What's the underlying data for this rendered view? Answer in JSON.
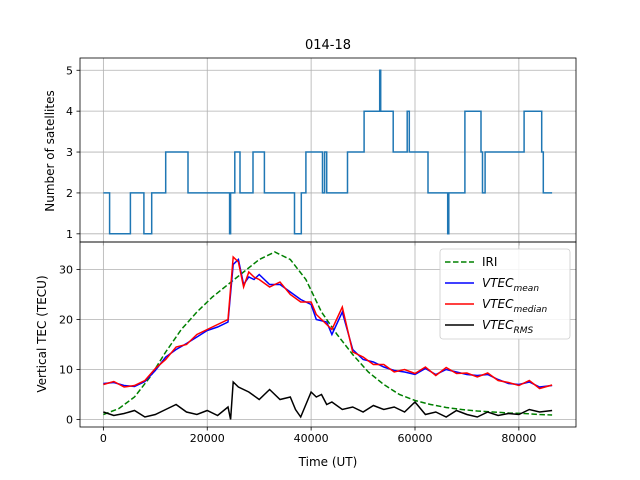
{
  "title": "014-18",
  "chart_data": [
    {
      "type": "line",
      "id": "satellites",
      "ylabel": "Number of satellites",
      "xlabel": "",
      "xlim": [
        -4500,
        91000
      ],
      "ylim": [
        0.8,
        5.3
      ],
      "yticks": [
        1,
        2,
        3,
        4,
        5
      ],
      "xticks": [
        0,
        20000,
        40000,
        60000,
        80000
      ],
      "grid": true,
      "series": [
        {
          "color": "#1f77b4",
          "x": [
            0,
            1200,
            1200,
            5200,
            5200,
            7800,
            7800,
            9300,
            9300,
            12000,
            12000,
            16300,
            16300,
            24300,
            24300,
            24500,
            24500,
            25300,
            25300,
            26300,
            26300,
            28800,
            28800,
            31000,
            31000,
            36800,
            36800,
            38100,
            38100,
            39000,
            39000,
            42200,
            42200,
            42600,
            42600,
            43000,
            43000,
            43300,
            43300,
            47000,
            47000,
            50200,
            50200,
            50700,
            50700,
            53200,
            53200,
            53400,
            53400,
            55800,
            55800,
            58500,
            58500,
            58900,
            58900,
            59500,
            59500,
            62500,
            62500,
            66300,
            66300,
            66500,
            66500,
            69600,
            69600,
            72700,
            72700,
            73000,
            73000,
            73500,
            73500,
            75400,
            75400,
            81000,
            81000,
            82200,
            82200,
            84400,
            84400,
            84700,
            84700,
            86400
          ],
          "y": [
            2,
            2,
            1,
            1,
            2,
            2,
            1,
            1,
            2,
            2,
            3,
            3,
            2,
            2,
            1,
            1,
            2,
            2,
            3,
            3,
            2,
            2,
            3,
            3,
            2,
            2,
            1,
            1,
            2,
            2,
            3,
            3,
            2,
            2,
            3,
            3,
            2,
            2,
            2,
            2,
            3,
            3,
            4,
            4,
            4,
            4,
            5,
            5,
            4,
            4,
            3,
            3,
            4,
            4,
            3,
            3,
            3,
            3,
            2,
            2,
            1,
            1,
            2,
            2,
            4,
            4,
            3,
            3,
            2,
            2,
            3,
            3,
            3,
            3,
            4,
            4,
            4,
            4,
            3,
            3,
            2,
            2
          ]
        }
      ]
    },
    {
      "type": "line",
      "id": "vtec",
      "ylabel": "Vertical TEC (TECU)",
      "xlabel": "Time (UT)",
      "xlim": [
        -4500,
        91000
      ],
      "ylim": [
        -1.5,
        35.5
      ],
      "yticks": [
        0,
        10,
        20,
        30
      ],
      "xticks": [
        0,
        20000,
        40000,
        60000,
        80000
      ],
      "xticklabels": [
        "0",
        "20000",
        "40000",
        "60000",
        "80000"
      ],
      "grid": true,
      "legend_position": "upper-right",
      "series": [
        {
          "name": "IRI",
          "color": "#008000",
          "dash": true,
          "x": [
            0,
            3000,
            6000,
            9000,
            12000,
            15000,
            18000,
            21000,
            24000,
            27000,
            30000,
            33000,
            36000,
            39000,
            42000,
            45000,
            48000,
            51000,
            54000,
            57000,
            60000,
            63000,
            66000,
            69000,
            72000,
            75000,
            78000,
            81000,
            84000,
            86400
          ],
          "y": [
            1.0,
            2.2,
            4.5,
            8.5,
            13.5,
            18.0,
            21.5,
            24.5,
            27.0,
            29.5,
            32.0,
            33.5,
            32.0,
            28.0,
            21.5,
            17.0,
            13.0,
            9.5,
            7.0,
            5.0,
            3.8,
            3.0,
            2.4,
            2.0,
            1.7,
            1.5,
            1.3,
            1.2,
            1.0,
            0.9
          ]
        },
        {
          "name": "VTEC_mean",
          "color": "#0000ff",
          "x": [
            0,
            2000,
            4000,
            6000,
            8000,
            10000,
            12000,
            14000,
            16000,
            18000,
            20000,
            22000,
            24000,
            25000,
            26000,
            27000,
            28000,
            29000,
            30000,
            32000,
            34000,
            36000,
            38000,
            40000,
            41000,
            43000,
            44000,
            46000,
            48000,
            50000,
            52000,
            54000,
            56000,
            58000,
            60000,
            62000,
            64000,
            66000,
            68000,
            70000,
            72000,
            74000,
            76000,
            78000,
            80000,
            82000,
            84000,
            86400
          ],
          "y": [
            7.2,
            7.4,
            6.8,
            6.6,
            7.6,
            9.8,
            12.5,
            14.0,
            15.2,
            16.5,
            17.8,
            18.5,
            19.5,
            31.0,
            32.0,
            27.0,
            28.5,
            28.0,
            29.0,
            27.0,
            27.0,
            25.5,
            24.0,
            23.0,
            20.0,
            19.5,
            17.0,
            21.5,
            14.0,
            12.0,
            11.5,
            10.5,
            9.8,
            9.5,
            9.0,
            10.2,
            9.0,
            10.0,
            9.5,
            9.0,
            8.8,
            9.0,
            8.0,
            7.2,
            7.0,
            7.5,
            6.5,
            6.8
          ]
        },
        {
          "name": "VTEC_median",
          "color": "#ff0000",
          "x": [
            0,
            2000,
            4000,
            6000,
            8000,
            10000,
            12000,
            14000,
            16000,
            18000,
            20000,
            22000,
            24000,
            25000,
            26000,
            27000,
            28000,
            29000,
            30000,
            32000,
            34000,
            36000,
            38000,
            40000,
            41000,
            43000,
            44000,
            46000,
            48000,
            50000,
            52000,
            54000,
            56000,
            58000,
            60000,
            62000,
            64000,
            66000,
            68000,
            70000,
            72000,
            74000,
            76000,
            78000,
            80000,
            82000,
            84000,
            86400
          ],
          "y": [
            7.0,
            7.6,
            6.5,
            6.8,
            7.8,
            10.2,
            12.0,
            14.5,
            15.0,
            17.0,
            18.0,
            19.0,
            20.0,
            32.5,
            31.5,
            26.5,
            29.5,
            28.5,
            28.0,
            26.5,
            27.5,
            25.0,
            23.5,
            23.5,
            21.0,
            19.0,
            18.0,
            22.5,
            13.5,
            12.5,
            11.0,
            11.0,
            9.5,
            10.0,
            9.2,
            10.5,
            8.8,
            10.4,
            9.2,
            9.3,
            8.5,
            9.3,
            7.8,
            7.4,
            6.8,
            7.8,
            6.2,
            6.9
          ]
        },
        {
          "name": "VTEC_RMS",
          "color": "#000000",
          "x": [
            0,
            2000,
            4000,
            6000,
            8000,
            10000,
            12000,
            14000,
            16000,
            18000,
            20000,
            22000,
            24000,
            24500,
            25000,
            26000,
            28000,
            30000,
            32000,
            34000,
            36000,
            37000,
            38000,
            40000,
            41000,
            42000,
            43000,
            44000,
            46000,
            48000,
            50000,
            52000,
            54000,
            56000,
            58000,
            60000,
            62000,
            64000,
            66000,
            68000,
            70000,
            72000,
            74000,
            76000,
            78000,
            80000,
            82000,
            84000,
            86400
          ],
          "y": [
            1.5,
            0.8,
            1.2,
            1.8,
            0.5,
            1.0,
            2.0,
            3.0,
            1.5,
            1.0,
            1.8,
            0.8,
            2.5,
            0.0,
            7.5,
            6.5,
            5.5,
            4.0,
            6.0,
            4.0,
            4.5,
            2.0,
            0.5,
            5.5,
            4.5,
            5.0,
            3.0,
            3.5,
            2.0,
            2.5,
            1.5,
            2.8,
            2.0,
            2.5,
            1.5,
            3.5,
            1.0,
            1.5,
            0.5,
            1.8,
            1.0,
            0.5,
            1.5,
            0.8,
            1.2,
            1.0,
            2.0,
            1.5,
            1.8
          ]
        }
      ]
    }
  ],
  "legend": {
    "items": [
      {
        "label": "IRI",
        "color": "#008000",
        "dash": true
      },
      {
        "label": "VTEC",
        "sub": "mean",
        "color": "#0000ff",
        "dash": false
      },
      {
        "label": "VTEC",
        "sub": "median",
        "color": "#ff0000",
        "dash": false
      },
      {
        "label": "VTEC",
        "sub": "RMS",
        "color": "#000000",
        "dash": false
      }
    ]
  }
}
